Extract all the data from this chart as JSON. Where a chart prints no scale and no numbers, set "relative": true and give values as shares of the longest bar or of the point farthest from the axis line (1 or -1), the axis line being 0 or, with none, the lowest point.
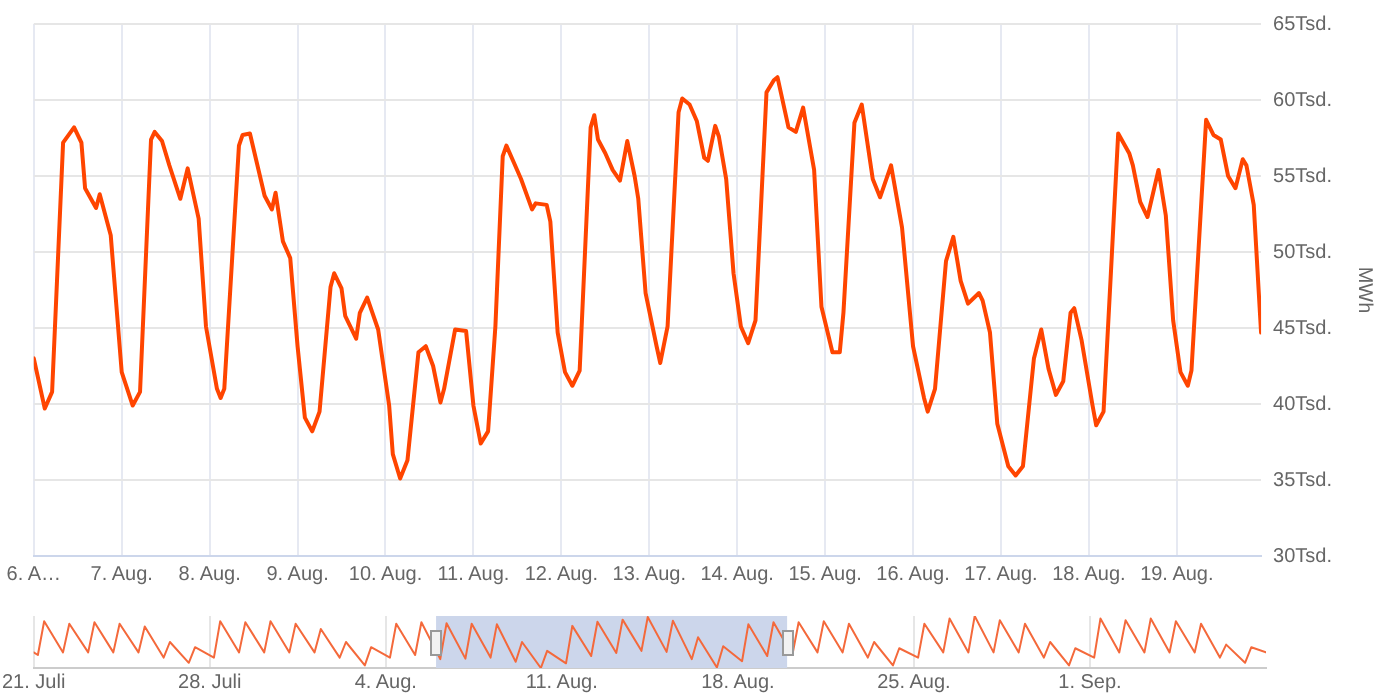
{
  "chart_data": [
    {
      "type": "line",
      "ylabel": "MWh",
      "color": "#ff4500",
      "marker": "none",
      "grid": true,
      "xlim": [
        "--08-06T00:00",
        "--08-19T23:00"
      ],
      "xticks": [
        {
          "value": "--08-06",
          "label": "6. A…"
        },
        {
          "value": "--08-07",
          "label": "7. Aug."
        },
        {
          "value": "--08-08",
          "label": "8. Aug."
        },
        {
          "value": "--08-09",
          "label": "9. Aug."
        },
        {
          "value": "--08-10",
          "label": "10. Aug."
        },
        {
          "value": "--08-11",
          "label": "11. Aug."
        },
        {
          "value": "--08-12",
          "label": "12. Aug."
        },
        {
          "value": "--08-13",
          "label": "13. Aug."
        },
        {
          "value": "--08-14",
          "label": "14. Aug."
        },
        {
          "value": "--08-15",
          "label": "15. Aug."
        },
        {
          "value": "--08-16",
          "label": "16. Aug."
        },
        {
          "value": "--08-17",
          "label": "17. Aug."
        },
        {
          "value": "--08-18",
          "label": "18. Aug."
        },
        {
          "value": "--08-19",
          "label": "19. Aug."
        }
      ],
      "ylim": [
        30,
        65
      ],
      "yticks": [
        {
          "value": 30,
          "label": "30Tsd."
        },
        {
          "value": 35,
          "label": "35Tsd."
        },
        {
          "value": 40,
          "label": "40Tsd."
        },
        {
          "value": 45,
          "label": "45Tsd."
        },
        {
          "value": 50,
          "label": "50Tsd."
        },
        {
          "value": 55,
          "label": "55Tsd."
        },
        {
          "value": 60,
          "label": "60Tsd."
        },
        {
          "value": 65,
          "label": "65Tsd."
        }
      ],
      "x": [
        "--08-06T00:00",
        "--08-06T03:00",
        "--08-06T05:00",
        "--08-06T08:00",
        "--08-06T11:00",
        "--08-06T13:00",
        "--08-06T14:00",
        "--08-06T17:00",
        "--08-06T18:00",
        "--08-06T21:00",
        "--08-07T00:00",
        "--08-07T03:00",
        "--08-07T05:00",
        "--08-07T08:00",
        "--08-07T09:00",
        "--08-07T11:00",
        "--08-07T13:00",
        "--08-07T16:00",
        "--08-07T18:00",
        "--08-07T21:00",
        "--08-07T23:00",
        "--08-08T02:00",
        "--08-08T03:00",
        "--08-08T04:00",
        "--08-08T08:00",
        "--08-08T09:00",
        "--08-08T11:00",
        "--08-08T15:00",
        "--08-08T17:00",
        "--08-08T18:00",
        "--08-08T20:00",
        "--08-08T22:00",
        "--08-09T00:00",
        "--08-09T02:00",
        "--08-09T04:00",
        "--08-09T06:00",
        "--08-09T09:00",
        "--08-09T10:00",
        "--08-09T12:00",
        "--08-09T13:00",
        "--08-09T16:00",
        "--08-09T17:00",
        "--08-09T19:00",
        "--08-09T22:00",
        "--08-10T01:00",
        "--08-10T02:00",
        "--08-10T04:00",
        "--08-10T06:00",
        "--08-10T09:00",
        "--08-10T11:00",
        "--08-10T13:00",
        "--08-10T15:00",
        "--08-10T16:00",
        "--08-10T19:00",
        "--08-10T22:00",
        "--08-11T00:00",
        "--08-11T02:00",
        "--08-11T04:00",
        "--08-11T06:00",
        "--08-11T08:00",
        "--08-11T09:00",
        "--08-11T11:00",
        "--08-11T13:00",
        "--08-11T16:00",
        "--08-11T17:00",
        "--08-11T20:00",
        "--08-11T21:00",
        "--08-11T23:00",
        "--08-12T01:00",
        "--08-12T03:00",
        "--08-12T05:00",
        "--08-12T08:00",
        "--08-12T09:00",
        "--08-12T10:00",
        "--08-12T12:00",
        "--08-12T14:00",
        "--08-12T16:00",
        "--08-12T18:00",
        "--08-12T20:00",
        "--08-12T21:00",
        "--08-12T23:00",
        "--08-13T02:00",
        "--08-13T03:00",
        "--08-13T05:00",
        "--08-13T08:00",
        "--08-13T09:00",
        "--08-13T11:00",
        "--08-13T13:00",
        "--08-13T15:00",
        "--08-13T16:00",
        "--08-13T18:00",
        "--08-13T19:00",
        "--08-13T21:00",
        "--08-13T23:00",
        "--08-14T01:00",
        "--08-14T03:00",
        "--08-14T05:00",
        "--08-14T08:00",
        "--08-14T10:00",
        "--08-14T11:00",
        "--08-14T12:00",
        "--08-14T14:00",
        "--08-14T16:00",
        "--08-14T18:00",
        "--08-14T21:00",
        "--08-14T23:00",
        "--08-15T02:00",
        "--08-15T04:00",
        "--08-15T05:00",
        "--08-15T08:00",
        "--08-15T10:00",
        "--08-15T13:00",
        "--08-15T15:00",
        "--08-15T18:00",
        "--08-15T21:00",
        "--08-16T00:00",
        "--08-16T03:00",
        "--08-16T04:00",
        "--08-16T06:00",
        "--08-16T09:00",
        "--08-16T11:00",
        "--08-16T13:00",
        "--08-16T15:00",
        "--08-16T18:00",
        "--08-16T19:00",
        "--08-16T21:00",
        "--08-16T23:00",
        "--08-17T02:00",
        "--08-17T04:00",
        "--08-17T06:00",
        "--08-17T09:00",
        "--08-17T11:00",
        "--08-17T13:00",
        "--08-17T15:00",
        "--08-17T17:00",
        "--08-17T19:00",
        "--08-17T20:00",
        "--08-17T22:00",
        "--08-18T01:00",
        "--08-18T02:00",
        "--08-18T04:00",
        "--08-18T06:00",
        "--08-18T08:00",
        "--08-18T11:00",
        "--08-18T12:00",
        "--08-18T14:00",
        "--08-18T16:00",
        "--08-18T19:00",
        "--08-18T21:00",
        "--08-18T23:00",
        "--08-19T01:00",
        "--08-19T03:00",
        "--08-19T04:00",
        "--08-19T08:00",
        "--08-19T10:00",
        "--08-19T12:00",
        "--08-19T14:00",
        "--08-19T16:00",
        "--08-19T18:00",
        "--08-19T19:00",
        "--08-19T21:00",
        "--08-19T23:00"
      ],
      "values": [
        43.0,
        39.7,
        40.8,
        57.2,
        58.2,
        57.2,
        54.2,
        52.9,
        53.8,
        51.1,
        42.1,
        39.9,
        40.8,
        57.4,
        57.9,
        57.3,
        55.7,
        53.5,
        55.5,
        52.2,
        45.1,
        41.0,
        40.4,
        41.0,
        57.0,
        57.7,
        57.8,
        53.7,
        52.8,
        53.9,
        50.7,
        49.6,
        43.8,
        39.1,
        38.2,
        39.5,
        47.7,
        48.6,
        47.6,
        45.8,
        44.3,
        46.0,
        47.0,
        44.9,
        39.9,
        36.7,
        35.1,
        36.3,
        43.4,
        43.8,
        42.5,
        40.1,
        41.0,
        44.9,
        44.8,
        39.9,
        37.4,
        38.2,
        45.1,
        56.3,
        57.0,
        55.9,
        54.8,
        52.8,
        53.2,
        53.1,
        52.0,
        44.7,
        42.1,
        41.2,
        42.2,
        58.2,
        59.0,
        57.4,
        56.5,
        55.4,
        54.7,
        57.3,
        55.0,
        53.5,
        47.3,
        43.8,
        42.7,
        45.1,
        59.2,
        60.1,
        59.7,
        58.6,
        56.2,
        56.0,
        58.3,
        57.6,
        54.8,
        48.6,
        45.1,
        44.0,
        45.5,
        60.5,
        61.3,
        61.5,
        60.4,
        58.2,
        57.9,
        59.5,
        55.4,
        46.4,
        43.4,
        43.4,
        46.0,
        58.5,
        59.7,
        54.8,
        53.6,
        55.7,
        51.6,
        43.8,
        40.4,
        39.5,
        41.0,
        49.4,
        51.0,
        48.1,
        46.6,
        47.3,
        46.8,
        44.7,
        38.7,
        35.9,
        35.3,
        35.9,
        43.0,
        44.9,
        42.3,
        40.6,
        41.5,
        46.0,
        46.3,
        44.2,
        39.9,
        38.6,
        39.5,
        48.6,
        57.8,
        56.5,
        55.7,
        53.3,
        52.3,
        55.4,
        52.4,
        45.5,
        42.1,
        41.2,
        42.2,
        58.7,
        57.7,
        57.4,
        55.0,
        54.2,
        56.1,
        55.7,
        53.1,
        44.7
      ]
    },
    {
      "type": "line",
      "relative": true,
      "color": "#f4693b",
      "marker": "none",
      "grid": "x",
      "xlim": [
        "--07-21T00:00",
        "--09-08T00:00"
      ],
      "xticks": [
        {
          "value": "--07-21",
          "label": "21. Juli"
        },
        {
          "value": "--07-28",
          "label": "28. Juli"
        },
        {
          "value": "--08-04",
          "label": "4. Aug."
        },
        {
          "value": "--08-11",
          "label": "11. Aug."
        },
        {
          "value": "--08-18",
          "label": "18. Aug."
        },
        {
          "value": "--08-25",
          "label": "25. Aug."
        },
        {
          "value": "--09-01",
          "label": "1. Sep."
        }
      ],
      "bands": [
        {
          "axis": "x",
          "from": "--08-06T00:00",
          "to": "--08-19T23:00",
          "color": "#ccd6eb"
        }
      ],
      "x": [
        "--07-21T00:00",
        "--07-21T04:00",
        "--07-21T10:00",
        "--07-22T04:00",
        "--07-22T10:00",
        "--07-23T04:00",
        "--07-23T10:00",
        "--07-24T04:00",
        "--07-24T10:00",
        "--07-25T04:00",
        "--07-25T10:00",
        "--07-26T04:00",
        "--07-26T10:00",
        "--07-27T04:00",
        "--07-27T10:00",
        "--07-28T04:00",
        "--07-28T10:00",
        "--07-29T04:00",
        "--07-29T10:00",
        "--07-30T04:00",
        "--07-30T10:00",
        "--07-31T04:00",
        "--07-31T10:00",
        "--08-01T04:00",
        "--08-01T10:00",
        "--08-02T04:00",
        "--08-02T10:00",
        "--08-03T04:00",
        "--08-03T10:00",
        "--08-04T04:00",
        "--08-04T10:00",
        "--08-05T04:00",
        "--08-05T10:00",
        "--08-06T04:00",
        "--08-06T10:00",
        "--08-07T04:00",
        "--08-07T10:00",
        "--08-08T04:00",
        "--08-08T10:00",
        "--08-09T04:00",
        "--08-09T10:00",
        "--08-10T04:00",
        "--08-10T10:00",
        "--08-11T04:00",
        "--08-11T10:00",
        "--08-12T04:00",
        "--08-12T10:00",
        "--08-13T04:00",
        "--08-13T10:00",
        "--08-14T04:00",
        "--08-14T10:00",
        "--08-15T04:00",
        "--08-15T10:00",
        "--08-16T04:00",
        "--08-16T10:00",
        "--08-17T04:00",
        "--08-17T10:00",
        "--08-18T04:00",
        "--08-18T10:00",
        "--08-19T04:00",
        "--08-19T10:00",
        "--08-20T04:00",
        "--08-20T10:00",
        "--08-21T04:00",
        "--08-21T10:00",
        "--08-22T04:00",
        "--08-22T10:00",
        "--08-23T04:00",
        "--08-23T10:00",
        "--08-24T04:00",
        "--08-24T10:00",
        "--08-25T04:00",
        "--08-25T10:00",
        "--08-26T04:00",
        "--08-26T10:00",
        "--08-27T04:00",
        "--08-27T10:00",
        "--08-28T04:00",
        "--08-28T10:00",
        "--08-29T04:00",
        "--08-29T10:00",
        "--08-30T04:00",
        "--08-30T10:00",
        "--08-31T04:00",
        "--08-31T10:00",
        "--09-01T04:00",
        "--09-01T10:00",
        "--09-02T04:00",
        "--09-02T10:00",
        "--09-03T04:00",
        "--09-03T10:00",
        "--09-04T04:00",
        "--09-04T10:00",
        "--09-05T04:00",
        "--09-05T10:00",
        "--09-06T04:00",
        "--09-06T10:00",
        "--09-07T04:00",
        "--09-07T10:00",
        "--09-08T00:00"
      ],
      "values": [
        0.3,
        0.25,
        0.9,
        0.3,
        0.85,
        0.3,
        0.88,
        0.3,
        0.85,
        0.3,
        0.8,
        0.2,
        0.5,
        0.1,
        0.4,
        0.2,
        0.9,
        0.3,
        0.88,
        0.3,
        0.9,
        0.3,
        0.85,
        0.3,
        0.75,
        0.2,
        0.5,
        0.05,
        0.4,
        0.2,
        0.85,
        0.25,
        0.88,
        0.17,
        0.86,
        0.18,
        0.85,
        0.2,
        0.84,
        0.12,
        0.5,
        0,
        0.33,
        0.09,
        0.81,
        0.23,
        0.89,
        0.29,
        0.93,
        0.33,
        0.98,
        0.31,
        0.91,
        0.17,
        0.59,
        0.01,
        0.42,
        0.13,
        0.84,
        0.23,
        0.88,
        0.25,
        0.88,
        0.3,
        0.9,
        0.3,
        0.85,
        0.2,
        0.5,
        0.05,
        0.38,
        0.2,
        0.85,
        0.3,
        0.95,
        0.3,
        1,
        0.3,
        0.92,
        0.3,
        0.85,
        0.2,
        0.5,
        0.05,
        0.38,
        0.2,
        0.95,
        0.3,
        0.92,
        0.3,
        0.95,
        0.3,
        0.9,
        0.3,
        0.85,
        0.2,
        0.45,
        0.1,
        0.4,
        0.3
      ]
    }
  ]
}
